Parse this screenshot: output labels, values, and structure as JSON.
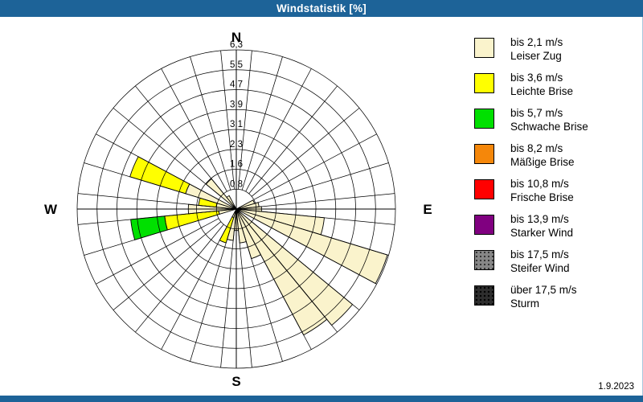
{
  "window": {
    "title": "Windstatistik [%]"
  },
  "colors": {
    "titlebar": "#1d6398",
    "frame_border": "#a9c6dd",
    "grid": "#000000",
    "leiser": "#faf3cc",
    "leichte": "#ffff00",
    "schwache": "#00e000",
    "massige": "#f5870a",
    "frische": "#ff0000",
    "starker": "#800080",
    "steifer": "#878787",
    "sturm": "#2e2e2e"
  },
  "legend": {
    "items": [
      {
        "speed": "bis 2,1 m/s",
        "name": "Leiser Zug",
        "class": "leiser",
        "pattern": "solid"
      },
      {
        "speed": "bis 3,6 m/s",
        "name": "Leichte Brise",
        "class": "leichte",
        "pattern": "solid"
      },
      {
        "speed": "bis 5,7 m/s",
        "name": "Schwache Brise",
        "class": "schwache",
        "pattern": "solid"
      },
      {
        "speed": "bis 8,2 m/s",
        "name": "Mäßige Brise",
        "class": "massige",
        "pattern": "solid"
      },
      {
        "speed": "bis 10,8 m/s",
        "name": "Frische Brise",
        "class": "frische",
        "pattern": "solid"
      },
      {
        "speed": "bis 13,9 m/s",
        "name": "Starker Wind",
        "class": "starker",
        "pattern": "solid"
      },
      {
        "speed": "bis 17,5 m/s",
        "name": "Steifer Wind",
        "class": "steifer",
        "pattern": "dots-gray"
      },
      {
        "speed": "über 17,5 m/s",
        "name": "Sturm",
        "class": "sturm",
        "pattern": "dots-dark"
      }
    ]
  },
  "footer": {
    "date": "1.9.2023"
  },
  "chart_data": {
    "type": "bar",
    "subtype": "wind-rose-polar-stacked",
    "title": "Windstatistik [%]",
    "units": "percent",
    "sector_count": 32,
    "sector_width_deg": 11.25,
    "rmax": 6.3,
    "ring_values": [
      0.8,
      1.6,
      2.3,
      3.1,
      3.9,
      4.7,
      5.5,
      6.3
    ],
    "ring_labels": [
      "0,8",
      "1,6",
      "2,3",
      "3,1",
      "3,9",
      "4,7",
      "5,5",
      "6,3"
    ],
    "compass": {
      "n": "N",
      "e": "E",
      "s": "S",
      "w": "W"
    },
    "grid": true,
    "legend_position": "right",
    "directions": [
      {
        "dir_deg": 67.5,
        "dir_name": "ENE",
        "segments": [
          {
            "class": "leiser",
            "to": 0.75
          }
        ]
      },
      {
        "dir_deg": 78.75,
        "dir_name": "EbN",
        "segments": [
          {
            "class": "leiser",
            "to": 0.9
          }
        ]
      },
      {
        "dir_deg": 90,
        "dir_name": "E",
        "segments": [
          {
            "class": "leiser",
            "to": 1.0
          }
        ]
      },
      {
        "dir_deg": 101.25,
        "dir_name": "EbS",
        "segments": [
          {
            "class": "leiser",
            "to": 3.5
          }
        ]
      },
      {
        "dir_deg": 112.5,
        "dir_name": "ESE",
        "segments": [
          {
            "class": "leiser",
            "to": 6.25
          }
        ]
      },
      {
        "dir_deg": 135,
        "dir_name": "SE",
        "segments": [
          {
            "class": "leiser",
            "to": 5.95
          }
        ]
      },
      {
        "dir_deg": 146.25,
        "dir_name": "SEbS",
        "segments": [
          {
            "class": "leiser",
            "to": 5.65
          }
        ]
      },
      {
        "dir_deg": 157.5,
        "dir_name": "SSE",
        "segments": [
          {
            "class": "leiser",
            "to": 2.05
          }
        ]
      },
      {
        "dir_deg": 168.75,
        "dir_name": "SbE",
        "segments": [
          {
            "class": "leiser",
            "to": 1.35
          }
        ]
      },
      {
        "dir_deg": 180,
        "dir_name": "S",
        "segments": [
          {
            "class": "leiser",
            "to": 0.85
          }
        ]
      },
      {
        "dir_deg": 191.25,
        "dir_name": "SbW",
        "segments": [
          {
            "class": "leiser",
            "to": 1.25
          }
        ]
      },
      {
        "dir_deg": 202.5,
        "dir_name": "SSW",
        "segments": [
          {
            "class": "leiser",
            "to": 0.35
          },
          {
            "class": "leichte",
            "to": 1.4
          }
        ]
      },
      {
        "dir_deg": 258.75,
        "dir_name": "WbS",
        "segments": [
          {
            "class": "leiser",
            "to": 0.7
          },
          {
            "class": "leichte",
            "to": 2.85
          },
          {
            "class": "schwache",
            "to": 4.2
          }
        ]
      },
      {
        "dir_deg": 270,
        "dir_name": "W",
        "segments": [
          {
            "class": "leiser",
            "to": 1.9
          }
        ]
      },
      {
        "dir_deg": 281.25,
        "dir_name": "WbN",
        "segments": [
          {
            "class": "leiser",
            "to": 0.8
          },
          {
            "class": "leichte",
            "to": 1.5
          }
        ]
      },
      {
        "dir_deg": 292.5,
        "dir_name": "WNW",
        "segments": [
          {
            "class": "leiser",
            "to": 2.1
          },
          {
            "class": "leichte",
            "to": 4.4
          }
        ]
      },
      {
        "dir_deg": 315,
        "dir_name": "NW",
        "segments": [
          {
            "class": "leiser",
            "to": 1.55
          }
        ]
      },
      {
        "dir_deg": 326.25,
        "dir_name": "NWbN",
        "segments": [
          {
            "class": "leiser",
            "to": 0.6
          }
        ]
      }
    ]
  }
}
